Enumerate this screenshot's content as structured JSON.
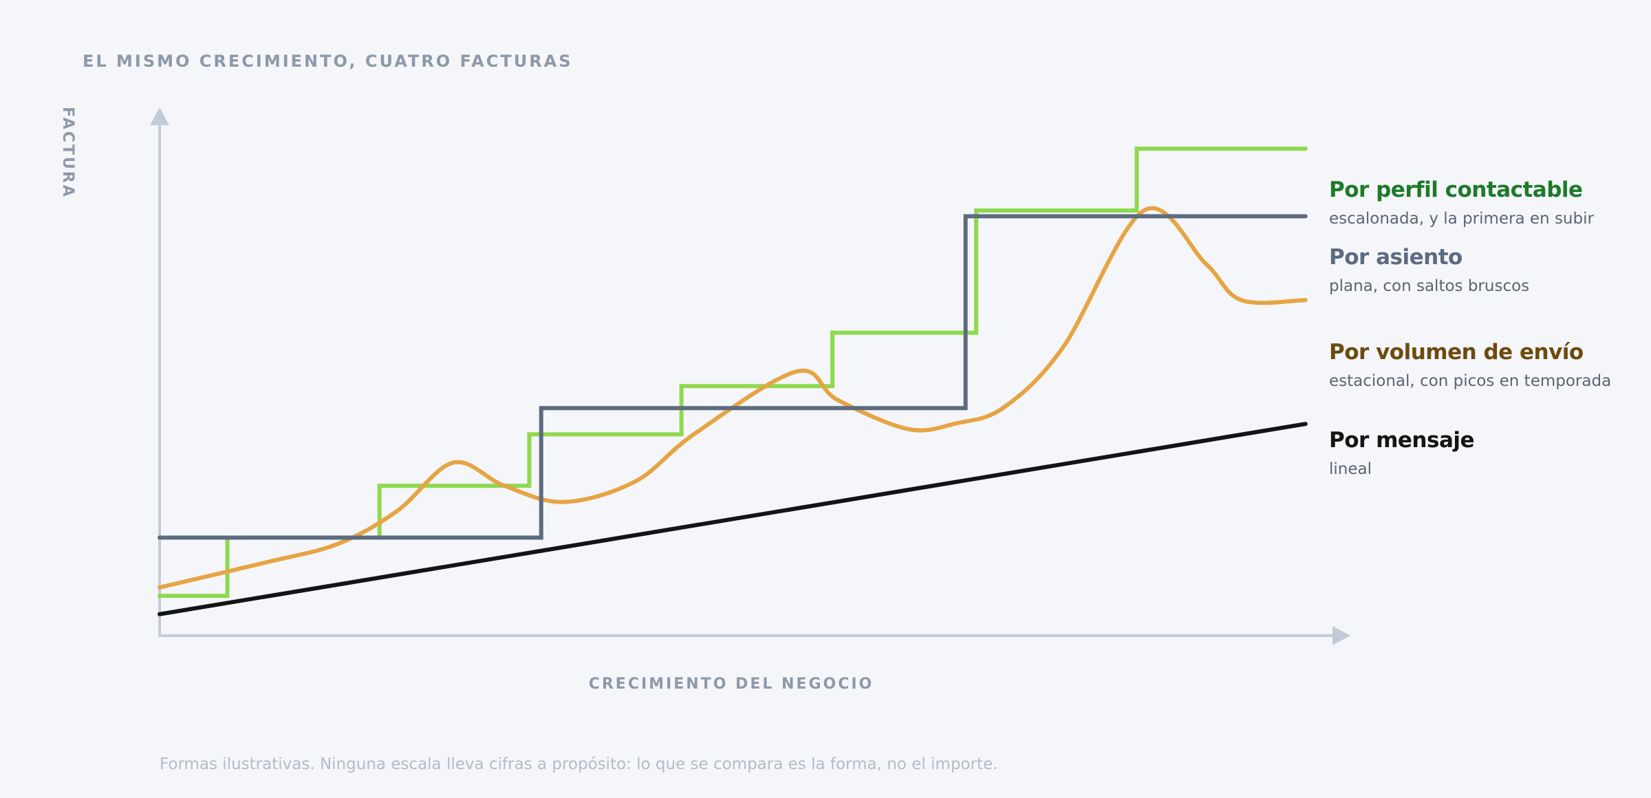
{
  "chart_data": {
    "type": "line",
    "title": "EL MISMO CRECIMIENTO, CUATRO FACTURAS",
    "xlabel": "CRECIMIENTO DEL NEGOCIO",
    "ylabel": "FACTURA",
    "xlim": [
      0,
      100
    ],
    "ylim": [
      0,
      100
    ],
    "grid": false,
    "legend": "right, inline labels at line ends",
    "footnote": "Formas ilustrativas. Ninguna escala lleva cifras a propósito: lo que se compara es la forma, no el importe.",
    "series": [
      {
        "name": "Por perfil contactable",
        "description": "escalonada, y la primera en subir",
        "color": "#8fd94f",
        "label_color": "#1e7a2a",
        "shape": "step",
        "points": [
          [
            0,
            7.6
          ],
          [
            5.7,
            7.6
          ],
          [
            5.7,
            18.7
          ],
          [
            18.5,
            18.7
          ],
          [
            18.5,
            28.6
          ],
          [
            31.1,
            28.6
          ],
          [
            31.1,
            38.4
          ],
          [
            43.9,
            38.4
          ],
          [
            43.9,
            47.6
          ],
          [
            56.6,
            47.6
          ],
          [
            56.6,
            57.8
          ],
          [
            68.7,
            57.8
          ],
          [
            68.7,
            81.1
          ],
          [
            82.2,
            81.1
          ],
          [
            82.2,
            92.9
          ],
          [
            96.4,
            92.9
          ]
        ]
      },
      {
        "name": "Por asiento",
        "description": "plana, con saltos bruscos",
        "color": "#5d6b80",
        "label_color": "#5d6b80",
        "shape": "step",
        "points": [
          [
            0,
            18.7
          ],
          [
            32.1,
            18.7
          ],
          [
            32.1,
            43.4
          ],
          [
            67.8,
            43.4
          ],
          [
            67.8,
            80.0
          ],
          [
            96.4,
            80.0
          ]
        ]
      },
      {
        "name": "Por volumen de envío",
        "description": "estacional, con picos en temporada",
        "color": "#e6a443",
        "label_color": "#6e4a0e",
        "shape": "smooth",
        "points": [
          [
            0,
            9.2
          ],
          [
            9,
            14.0
          ],
          [
            15,
            17.5
          ],
          [
            20,
            23.8
          ],
          [
            24.7,
            33.0
          ],
          [
            29,
            28.6
          ],
          [
            34,
            25.5
          ],
          [
            40,
            29.4
          ],
          [
            45,
            38.5
          ],
          [
            53.6,
            50.4
          ],
          [
            57,
            45.0
          ],
          [
            63,
            39.4
          ],
          [
            67,
            40.5
          ],
          [
            71,
            43.5
          ],
          [
            76,
            55.0
          ],
          [
            82.8,
            81.1
          ],
          [
            88,
            71.0
          ],
          [
            91,
            64.0
          ],
          [
            96.4,
            64.0
          ]
        ]
      },
      {
        "name": "Por mensaje",
        "description": "lineal",
        "color": "#141414",
        "label_color": "#141414",
        "shape": "linear",
        "points": [
          [
            0,
            4.1
          ],
          [
            96.4,
            40.4
          ]
        ]
      }
    ]
  }
}
